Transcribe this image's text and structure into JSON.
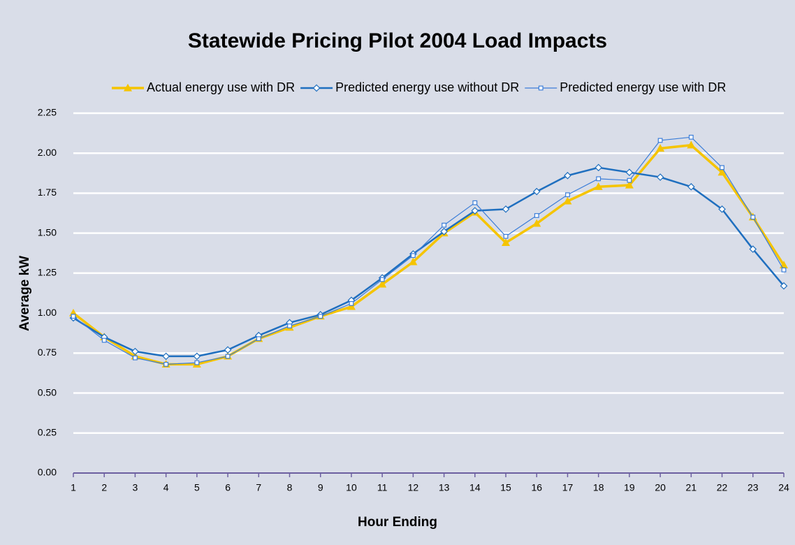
{
  "chart_data": {
    "type": "line",
    "title": "Statewide Pricing Pilot 2004 Load Impacts",
    "x_label": "Hour Ending",
    "y_label": "Average kW",
    "x": [
      1,
      2,
      3,
      4,
      5,
      6,
      7,
      8,
      9,
      10,
      11,
      12,
      13,
      14,
      15,
      16,
      17,
      18,
      19,
      20,
      21,
      22,
      23,
      24
    ],
    "xlim": [
      1,
      24
    ],
    "xticks": [
      1,
      2,
      3,
      4,
      5,
      6,
      7,
      8,
      9,
      10,
      11,
      12,
      13,
      14,
      15,
      16,
      17,
      18,
      19,
      20,
      21,
      22,
      23,
      24
    ],
    "ylim": [
      0,
      2.25
    ],
    "yticks": [
      {
        "value": 0,
        "label": "0.00"
      },
      {
        "value": 0.25,
        "label": "0.25"
      },
      {
        "value": 0.5,
        "label": "0.50"
      },
      {
        "value": 0.75,
        "label": "0.75"
      },
      {
        "value": 1,
        "label": "1.00"
      },
      {
        "value": 1.25,
        "label": "1.25"
      },
      {
        "value": 1.5,
        "label": "1.50"
      },
      {
        "value": 1.75,
        "label": "1.75"
      },
      {
        "value": 2,
        "label": "2.00"
      },
      {
        "value": 2.25,
        "label": "2.25"
      }
    ],
    "grid": true,
    "legend": "top",
    "series": [
      {
        "name": "Actual energy use with DR",
        "color": "#f5c400",
        "marker": "triangle",
        "values": [
          1.0,
          0.85,
          0.73,
          0.68,
          0.68,
          0.73,
          0.84,
          0.91,
          0.98,
          1.04,
          1.18,
          1.32,
          1.5,
          1.63,
          1.44,
          1.56,
          1.7,
          1.79,
          1.8,
          2.03,
          2.05,
          1.88,
          1.6,
          1.3
        ]
      },
      {
        "name": "Predicted energy use without DR",
        "color": "#1f6fbf",
        "marker": "diamond",
        "values": [
          0.97,
          0.85,
          0.76,
          0.73,
          0.73,
          0.77,
          0.86,
          0.94,
          0.99,
          1.08,
          1.22,
          1.37,
          1.51,
          1.64,
          1.65,
          1.76,
          1.86,
          1.91,
          1.88,
          1.85,
          1.79,
          1.65,
          1.4,
          1.17
        ]
      },
      {
        "name": "Predicted energy use with DR",
        "color": "#3b7dd8",
        "marker": "square",
        "values": [
          0.98,
          0.83,
          0.72,
          0.68,
          0.69,
          0.73,
          0.84,
          0.92,
          0.98,
          1.06,
          1.21,
          1.36,
          1.55,
          1.69,
          1.48,
          1.61,
          1.74,
          1.84,
          1.83,
          2.08,
          2.1,
          1.91,
          1.6,
          1.27
        ]
      }
    ]
  }
}
